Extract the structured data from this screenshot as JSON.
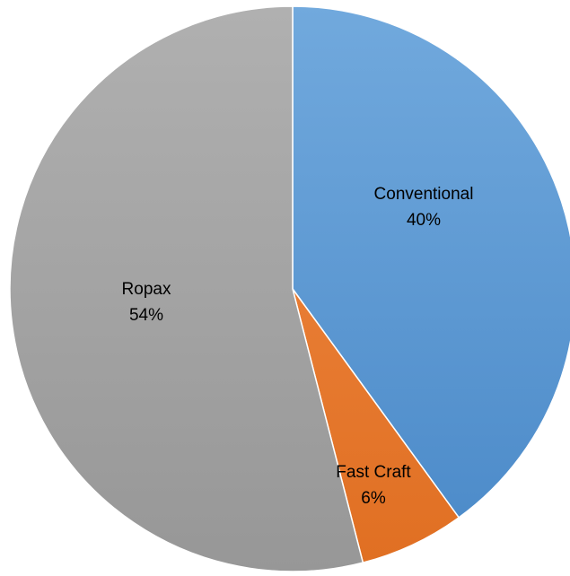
{
  "chart_data": {
    "type": "pie",
    "start_angle_deg": 0,
    "direction": "clockwise",
    "slices": [
      {
        "label": "Conventional",
        "value": 40,
        "percent_label": "40%",
        "color": "#5b9bd5",
        "color_light": "#71a9dd",
        "color_dark": "#4a89c8"
      },
      {
        "label": "Fast Craft",
        "value": 6,
        "percent_label": "6%",
        "color": "#ed7d31",
        "color_light": "#f08a45",
        "color_dark": "#e06f22"
      },
      {
        "label": "Ropax",
        "value": 54,
        "percent_label": "54%",
        "color": "#a5a5a5",
        "color_light": "#b0b0b0",
        "color_dark": "#979797"
      }
    ],
    "legend": "none",
    "title": ""
  }
}
